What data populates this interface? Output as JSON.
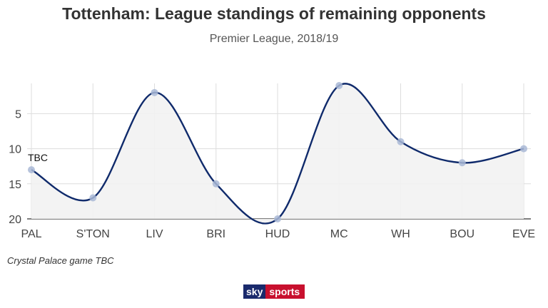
{
  "header": {
    "title": "Tottenham: League standings of remaining opponents",
    "subtitle": "Premier League, 2018/19"
  },
  "footnote": "Crystal Palace game TBC",
  "branding": {
    "sky": "sky",
    "sports": "sports"
  },
  "colors": {
    "line": "#0f2a6b",
    "point": "#a9b8d6",
    "area": "#f2f2f2",
    "grid": "#dddddd",
    "axis": "#333333"
  },
  "chart_data": {
    "type": "line",
    "title": "Tottenham: League standings of remaining opponents",
    "subtitle": "Premier League, 2018/19",
    "xlabel": "",
    "ylabel": "",
    "categories": [
      "PAL",
      "S'TON",
      "LIV",
      "BRI",
      "HUD",
      "MC",
      "WH",
      "BOU",
      "EVE"
    ],
    "series": [
      {
        "values": [
          13,
          17,
          2,
          15,
          20,
          1,
          9,
          12,
          10
        ]
      }
    ],
    "yticks": [
      5,
      10,
      15,
      20
    ],
    "ylim": [
      1,
      20
    ],
    "y_inverted": true,
    "grid": true,
    "annotations": [
      {
        "category": "PAL",
        "text": "TBC"
      }
    ]
  }
}
